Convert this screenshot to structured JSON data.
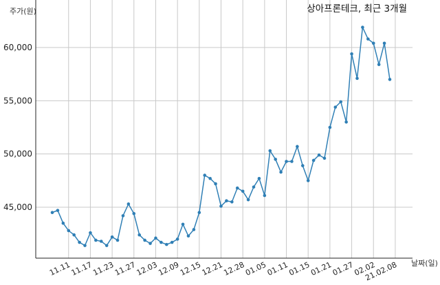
{
  "chart_data": {
    "type": "line",
    "title": "상아프론테크, 최근 3개월",
    "ylabel": "주가(원)",
    "xlabel": "날짜(일)",
    "ylim": [
      41800,
      62500
    ],
    "yticks": [
      45000,
      50000,
      55000,
      60000
    ],
    "ytick_labels": [
      "45,000",
      "50,000",
      "55,000",
      "60,000"
    ],
    "grid": true,
    "series_color": "#2f7fb5",
    "xtick_labels": [
      "11.11",
      "11.17",
      "11.23",
      "11.27",
      "12.03",
      "12.09",
      "12.15",
      "12.21",
      "12.28",
      "01.05",
      "01.11",
      "01.15",
      "01.21",
      "01.27",
      "02.02",
      "21.02.08"
    ],
    "xtick_positions": [
      3,
      7,
      11,
      15,
      19,
      23,
      27,
      31,
      35,
      39,
      43,
      47,
      51,
      55,
      59,
      63
    ],
    "series": [
      {
        "values": [
          44500,
          44700,
          43500,
          42800,
          42400,
          41700,
          41400,
          42600,
          41900,
          41800,
          41400,
          42200,
          41900,
          44200,
          45300,
          44400,
          42400,
          41900,
          41600,
          42100,
          41700,
          41500,
          41700,
          42000,
          43400,
          42300,
          42900,
          44500,
          48000,
          47700,
          47200,
          45100,
          45600,
          45500,
          46800,
          46500,
          45700,
          46900,
          47700,
          46100,
          50300,
          49500,
          48300,
          49300,
          49300,
          50700,
          48900,
          47500,
          49400,
          49900,
          49600,
          52500,
          54400,
          54900,
          53000,
          59400,
          57100,
          61900,
          60800,
          60400,
          58400,
          60400,
          57000
        ]
      }
    ]
  }
}
